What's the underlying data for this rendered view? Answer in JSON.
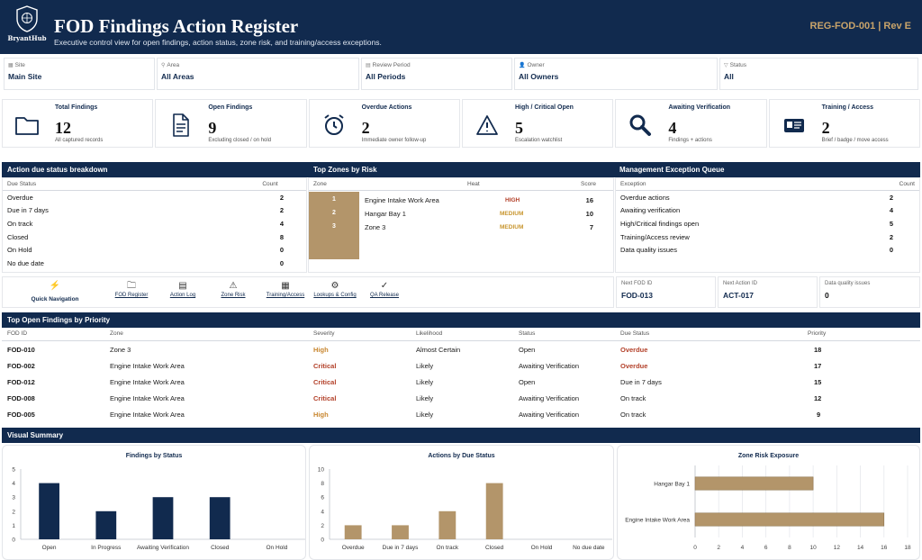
{
  "header": {
    "logo_text": "BryantHub",
    "title": "FOD Findings Action Register",
    "subtitle": "Executive control view for open findings, action status, zone risk, and training/access exceptions.",
    "doc_ref": "REG-FOD-001  |  Rev E"
  },
  "filters": [
    {
      "label": "Site",
      "value": "Main Site",
      "icon": "building-icon"
    },
    {
      "label": "Area",
      "value": "All Areas",
      "icon": "location-pin-icon"
    },
    {
      "label": "Review Period",
      "value": "All Periods",
      "icon": "calendar-icon"
    },
    {
      "label": "Owner",
      "value": "All Owners",
      "icon": "person-icon"
    },
    {
      "label": "Status",
      "value": "All",
      "icon": "filter-icon"
    }
  ],
  "kpis": [
    {
      "label": "Total Findings",
      "value": "12",
      "note": "All captured records",
      "icon": "folder-icon"
    },
    {
      "label": "Open Findings",
      "value": "9",
      "note": "Excluding closed / on hold",
      "icon": "document-icon"
    },
    {
      "label": "Overdue Actions",
      "value": "2",
      "note": "Immediate owner follow-up",
      "icon": "alarm-clock-icon"
    },
    {
      "label": "High / Critical Open",
      "value": "5",
      "note": "Escalation watchlist",
      "icon": "warning-icon"
    },
    {
      "label": "Awaiting Verification",
      "value": "4",
      "note": "Findings + actions",
      "icon": "magnifier-icon"
    },
    {
      "label": "Training / Access",
      "value": "2",
      "note": "Brief / badge / move access",
      "icon": "badge-icon"
    }
  ],
  "due_status": {
    "title": "Action due status breakdown",
    "col1": "Due Status",
    "col2": "Count",
    "rows": [
      {
        "label": "Overdue",
        "count": "2"
      },
      {
        "label": "Due in 7 days",
        "count": "2"
      },
      {
        "label": "On track",
        "count": "4"
      },
      {
        "label": "Closed",
        "count": "8"
      },
      {
        "label": "On Hold",
        "count": "0"
      },
      {
        "label": "No due date",
        "count": "0"
      }
    ]
  },
  "zones": {
    "title": "Top Zones by Risk",
    "col1": "Zone",
    "col2": "Heat",
    "col3": "Score",
    "rows": [
      {
        "rank": "1",
        "zone": "Engine Intake Work Area",
        "heat": "HIGH",
        "score": "16"
      },
      {
        "rank": "2",
        "zone": "Hangar Bay 1",
        "heat": "MEDIUM",
        "score": "10"
      },
      {
        "rank": "3",
        "zone": "Zone 3",
        "heat": "MEDIUM",
        "score": "7"
      }
    ]
  },
  "exceptions": {
    "title": "Management Exception Queue",
    "col1": "Exception",
    "col2": "Count",
    "rows": [
      {
        "label": "Overdue actions",
        "count": "2"
      },
      {
        "label": "Awaiting verification",
        "count": "4"
      },
      {
        "label": "High/Critical findings open",
        "count": "5"
      },
      {
        "label": "Training/Access review",
        "count": "2"
      },
      {
        "label": "Data quality issues",
        "count": "0"
      }
    ]
  },
  "quick_nav": {
    "title": "Quick Navigation",
    "links": [
      {
        "label": "FOD Register",
        "icon": "folder-icon"
      },
      {
        "label": "Action Log",
        "icon": "clipboard-icon"
      },
      {
        "label": "Zone Risk",
        "icon": "warning-icon"
      },
      {
        "label": "Training/Access",
        "icon": "keyboard-icon"
      },
      {
        "label": "Lookups & Config",
        "icon": "gear-icon"
      },
      {
        "label": "QA Release",
        "icon": "check-icon"
      }
    ]
  },
  "next_ids": [
    {
      "label": "Next FOD ID",
      "value": "FOD-013"
    },
    {
      "label": "Next Action ID",
      "value": "ACT-017"
    },
    {
      "label": "Data quality issues",
      "value": "0"
    }
  ],
  "findings": {
    "title": "Top Open Findings by Priority",
    "headers": [
      "FOD ID",
      "Zone",
      "Severity",
      "Likelihood",
      "Status",
      "Due Status",
      "Priority"
    ],
    "rows": [
      {
        "id": "FOD-010",
        "zone": "Zone 3",
        "severity": "High",
        "likelihood": "Almost Certain",
        "status": "Open",
        "due": "Overdue",
        "priority": "18"
      },
      {
        "id": "FOD-002",
        "zone": "Engine Intake Work Area",
        "severity": "Critical",
        "likelihood": "Likely",
        "status": "Awaiting Verification",
        "due": "Overdue",
        "priority": "17"
      },
      {
        "id": "FOD-012",
        "zone": "Engine Intake Work Area",
        "severity": "Critical",
        "likelihood": "Likely",
        "status": "Open",
        "due": "Due in 7 days",
        "priority": "15"
      },
      {
        "id": "FOD-008",
        "zone": "Engine Intake Work Area",
        "severity": "Critical",
        "likelihood": "Likely",
        "status": "Awaiting Verification",
        "due": "On track",
        "priority": "12"
      },
      {
        "id": "FOD-005",
        "zone": "Engine Intake Work Area",
        "severity": "High",
        "likelihood": "Likely",
        "status": "Awaiting Verification",
        "due": "On track",
        "priority": "9"
      }
    ]
  },
  "visual_summary_title": "Visual Summary",
  "colors": {
    "navy": "#112a4e",
    "gold": "#b3956a",
    "red": "#b3412a",
    "amber": "#c8862f"
  },
  "chart_data": [
    {
      "type": "bar",
      "title": "Findings by Status",
      "categories": [
        "Open",
        "In Progress",
        "Awaiting Verification",
        "Closed",
        "On Hold"
      ],
      "values": [
        4,
        2,
        3,
        3,
        0
      ],
      "ylim": [
        0,
        5
      ],
      "yticks": [
        0,
        1,
        2,
        3,
        4,
        5
      ],
      "color": "#112a4e"
    },
    {
      "type": "bar",
      "title": "Actions by Due Status",
      "categories": [
        "Overdue",
        "Due in 7 days",
        "On track",
        "Closed",
        "On Hold",
        "No due date"
      ],
      "values": [
        2,
        2,
        4,
        8,
        0,
        0
      ],
      "ylim": [
        0,
        10
      ],
      "yticks": [
        0,
        2,
        4,
        6,
        8,
        10
      ],
      "color": "#b3956a"
    },
    {
      "type": "bar",
      "orientation": "horizontal",
      "title": "Zone Risk Exposure",
      "categories": [
        "Hangar Bay 1",
        "Engine Intake Work Area"
      ],
      "values": [
        10,
        16
      ],
      "xlim": [
        0,
        18
      ],
      "xticks": [
        0,
        2,
        4,
        6,
        8,
        10,
        12,
        14,
        16,
        18
      ],
      "color": "#b3956a"
    }
  ]
}
